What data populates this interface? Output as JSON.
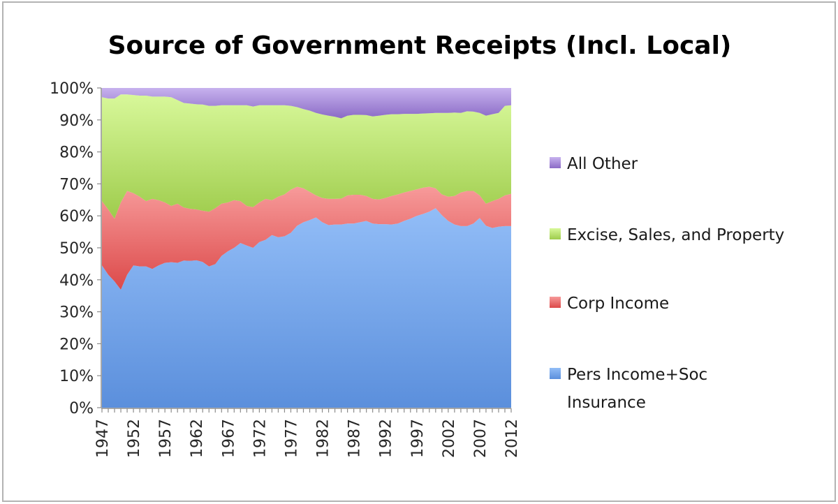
{
  "chart_data": {
    "type": "area",
    "stacked": true,
    "normalized_percent": true,
    "title": "Source of Government Receipts (Incl. Local)",
    "xlabel": "",
    "ylabel": "",
    "ylim": [
      0,
      100
    ],
    "yticks": [
      "0%",
      "10%",
      "20%",
      "30%",
      "40%",
      "50%",
      "60%",
      "70%",
      "80%",
      "90%",
      "100%"
    ],
    "xticks": [
      "1947",
      "1952",
      "1957",
      "1962",
      "1967",
      "1972",
      "1977",
      "1982",
      "1987",
      "1992",
      "1997",
      "2002",
      "2007",
      "2012"
    ],
    "x": [
      1947,
      1948,
      1949,
      1950,
      1951,
      1952,
      1953,
      1954,
      1955,
      1956,
      1957,
      1958,
      1959,
      1960,
      1961,
      1962,
      1963,
      1964,
      1965,
      1966,
      1967,
      1968,
      1969,
      1970,
      1971,
      1972,
      1973,
      1974,
      1975,
      1976,
      1977,
      1978,
      1979,
      1980,
      1981,
      1982,
      1983,
      1984,
      1985,
      1986,
      1987,
      1988,
      1989,
      1990,
      1991,
      1992,
      1993,
      1994,
      1995,
      1996,
      1997,
      1998,
      1999,
      2000,
      2001,
      2002,
      2003,
      2004,
      2005,
      2006,
      2007,
      2008,
      2009,
      2010,
      2011,
      2012
    ],
    "legend_position": "right",
    "series": [
      {
        "name": "Pers Income+Soc Insurance",
        "legend_lines": [
          "Pers Income+Soc",
          "Insurance"
        ],
        "color": "#5b8fdc",
        "color_light": "#92bdf7",
        "values": [
          44.5,
          41.6,
          39.5,
          36.9,
          41.6,
          44.5,
          44.2,
          44.2,
          43.4,
          44.5,
          45.3,
          45.5,
          45.3,
          46.0,
          45.9,
          46.1,
          45.6,
          44.2,
          44.9,
          47.5,
          48.9,
          50.0,
          51.5,
          50.7,
          50.0,
          51.8,
          52.5,
          54.0,
          53.3,
          53.6,
          54.7,
          56.9,
          58.0,
          58.7,
          59.5,
          58.0,
          57.1,
          57.3,
          57.3,
          57.6,
          57.6,
          58.0,
          58.4,
          57.6,
          57.4,
          57.4,
          57.3,
          57.6,
          58.4,
          59.1,
          60.0,
          60.6,
          61.3,
          62.4,
          60.2,
          58.4,
          57.3,
          56.8,
          56.8,
          57.6,
          59.3,
          56.9,
          56.2,
          56.6,
          56.8,
          56.8
        ]
      },
      {
        "name": "Corp Income",
        "color": "#dc4a4a",
        "color_light": "#f79a9a",
        "values": [
          20.1,
          20.4,
          19.6,
          27.3,
          26.2,
          22.6,
          21.8,
          20.4,
          21.9,
          20.4,
          18.9,
          17.6,
          18.5,
          16.6,
          16.3,
          15.9,
          16.0,
          17.1,
          17.5,
          16.3,
          15.3,
          14.9,
          13.1,
          12.4,
          12.7,
          12.4,
          12.8,
          10.9,
          12.7,
          13.1,
          13.5,
          12.2,
          10.6,
          8.8,
          6.9,
          7.6,
          8.2,
          8.0,
          8.1,
          8.8,
          9.0,
          8.6,
          7.8,
          7.7,
          7.7,
          8.2,
          8.9,
          9.1,
          8.9,
          8.7,
          8.3,
          8.2,
          7.8,
          6.2,
          6.5,
          7.6,
          8.9,
          10.5,
          11.0,
          10.2,
          7.1,
          6.9,
          8.4,
          8.7,
          9.6,
          10.1
        ]
      },
      {
        "name": "Excise, Sales, and Property",
        "color": "#9ecc4c",
        "color_light": "#d8f89a",
        "values": [
          32.5,
          34.7,
          37.6,
          33.8,
          30.2,
          30.7,
          31.6,
          33.0,
          32.0,
          32.4,
          33.1,
          34.0,
          32.4,
          32.7,
          32.9,
          32.9,
          33.2,
          33.1,
          32.0,
          30.8,
          30.4,
          29.7,
          30.0,
          31.5,
          31.5,
          30.4,
          29.3,
          29.7,
          28.6,
          27.9,
          26.2,
          24.9,
          24.8,
          25.4,
          25.8,
          26.1,
          26.0,
          25.7,
          25.1,
          24.9,
          25.0,
          25.0,
          25.3,
          25.8,
          26.2,
          26.0,
          25.6,
          25.1,
          24.6,
          24.1,
          23.6,
          23.2,
          23.0,
          23.6,
          25.5,
          26.2,
          26.1,
          24.9,
          24.9,
          24.8,
          25.8,
          27.5,
          27.2,
          26.9,
          28.0,
          27.7
        ]
      },
      {
        "name": "All Other",
        "color": "#8b6bc6",
        "color_light": "#c7b2ee",
        "values": [
          2.9,
          3.3,
          3.3,
          2.0,
          2.0,
          2.2,
          2.4,
          2.4,
          2.7,
          2.7,
          2.7,
          2.9,
          3.8,
          4.7,
          4.9,
          5.1,
          5.2,
          5.6,
          5.6,
          5.4,
          5.4,
          5.4,
          5.4,
          5.4,
          5.8,
          5.4,
          5.4,
          5.4,
          5.4,
          5.4,
          5.6,
          6.0,
          6.6,
          7.1,
          7.8,
          8.3,
          8.7,
          9.0,
          9.5,
          8.7,
          8.4,
          8.4,
          8.5,
          8.9,
          8.7,
          8.4,
          8.2,
          8.2,
          8.1,
          8.1,
          8.1,
          8.0,
          7.9,
          7.8,
          7.8,
          7.8,
          7.7,
          7.8,
          7.3,
          7.4,
          7.8,
          8.7,
          8.2,
          7.8,
          5.6,
          5.4
        ]
      }
    ],
    "legend_order": [
      "All Other",
      "Excise, Sales, and Property",
      "Corp Income",
      "Pers Income+Soc Insurance"
    ]
  }
}
